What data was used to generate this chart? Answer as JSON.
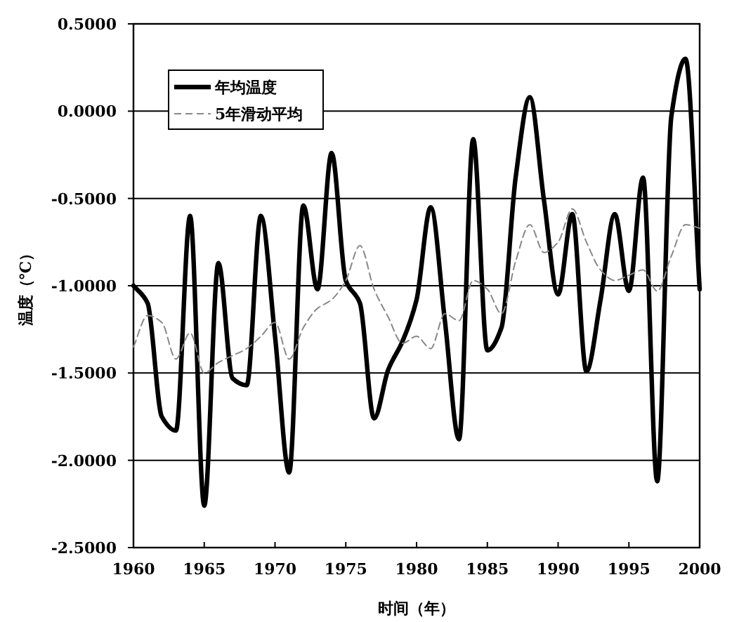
{
  "chart_data": {
    "type": "line",
    "xlabel": "时间（年）",
    "ylabel": "温度（℃）",
    "x": [
      1960,
      1961,
      1962,
      1963,
      1964,
      1965,
      1966,
      1967,
      1968,
      1969,
      1970,
      1971,
      1972,
      1973,
      1974,
      1975,
      1976,
      1977,
      1978,
      1979,
      1980,
      1981,
      1982,
      1983,
      1984,
      1985,
      1986,
      1987,
      1988,
      1989,
      1990,
      1991,
      1992,
      1993,
      1994,
      1995,
      1996,
      1997,
      1998,
      1999,
      2000
    ],
    "series": [
      {
        "name": "年均温度",
        "color": "#000000",
        "line_style": "solid",
        "values": [
          -1.0,
          -1.1,
          -1.75,
          -1.83,
          -0.6,
          -2.26,
          -0.87,
          -1.53,
          -1.57,
          -0.6,
          -1.29,
          -2.07,
          -0.54,
          -1.02,
          -0.24,
          -0.97,
          -1.1,
          -1.76,
          -1.48,
          -1.32,
          -1.08,
          -0.55,
          -1.2,
          -1.88,
          -0.16,
          -1.37,
          -1.24,
          -0.38,
          0.08,
          -0.51,
          -1.05,
          -0.59,
          -1.49,
          -1.08,
          -0.59,
          -1.03,
          -0.38,
          -2.12,
          -0.03,
          0.3,
          -1.02
        ]
      },
      {
        "name": "5年滑动平均",
        "color": "#888888",
        "line_style": "dashed",
        "values": [
          -1.35,
          -1.17,
          -1.21,
          -1.42,
          -1.27,
          -1.5,
          -1.44,
          -1.4,
          -1.36,
          -1.29,
          -1.21,
          -1.42,
          -1.24,
          -1.13,
          -1.08,
          -0.97,
          -0.77,
          -1.02,
          -1.18,
          -1.33,
          -1.29,
          -1.36,
          -1.16,
          -1.2,
          -0.97,
          -1.02,
          -1.16,
          -0.86,
          -0.65,
          -0.81,
          -0.75,
          -0.56,
          -0.75,
          -0.91,
          -0.97,
          -0.94,
          -0.91,
          -1.03,
          -0.83,
          -0.65,
          -0.67
        ]
      }
    ],
    "xlim": [
      1960,
      2000
    ],
    "xticks": [
      1960,
      1965,
      1970,
      1975,
      1980,
      1985,
      1990,
      1995,
      2000
    ],
    "ylim": [
      -2.5,
      0.5
    ],
    "yticks": [
      {
        "value": 0.5,
        "label": "0.5000"
      },
      {
        "value": 0,
        "label": "0.0000"
      },
      {
        "value": -0.5,
        "label": "-0.5000"
      },
      {
        "value": -1,
        "label": "-1.0000"
      },
      {
        "value": -1.5,
        "label": "-1.5000"
      },
      {
        "value": -2,
        "label": "-2.0000"
      },
      {
        "value": -2.5,
        "label": "-2.5000"
      }
    ],
    "grid": "y",
    "legend": "top left",
    "marker": "none"
  }
}
